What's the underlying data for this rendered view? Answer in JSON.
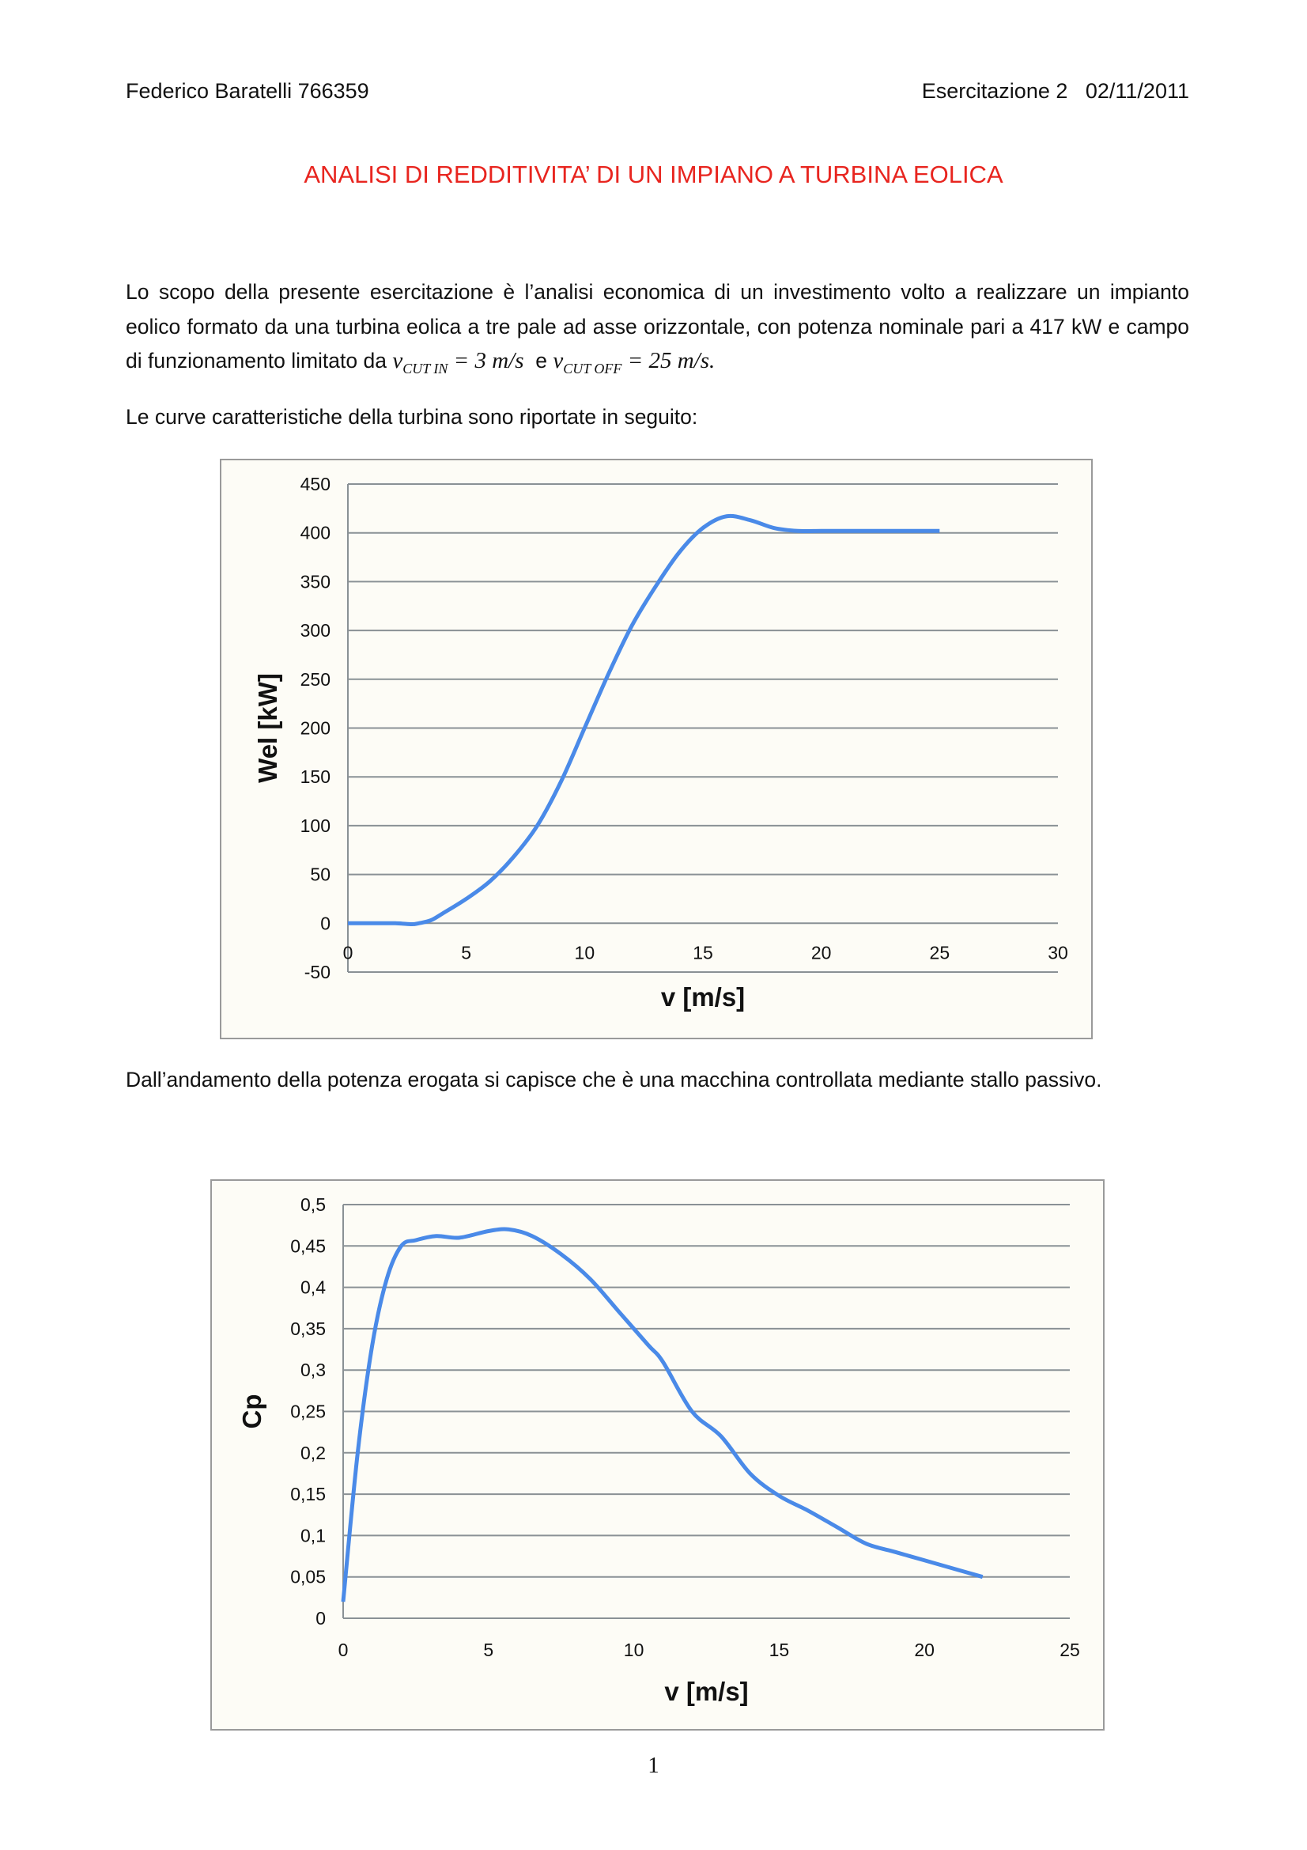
{
  "header": {
    "author": "Federico Baratelli 766359",
    "exercise": "Esercitazione 2   02/11/2011"
  },
  "title": "ANALISI DI REDDITIVITA’ DI UN IMPIANO A TURBINA EOLICA",
  "intro": {
    "text1": "Lo scopo della presente esercitazione è l’analisi economica di un investimento volto a realizzare un impianto eolico formato da una turbina eolica a tre pale ad asse orizzontale, con potenza nominale pari a 417 kW e campo di funzionamento limitato da ",
    "v_symbol": "v",
    "cut_in_sub": "CUT IN",
    "cut_in_value": " = 3 m/s",
    "connector": "  e ",
    "cut_off_sub": "CUT OFF",
    "cut_off_value": " = 25 m/s",
    "end": "."
  },
  "curves_intro": "Le curve caratteristiche della turbina sono riportate in seguito:",
  "stall_note": "Dall’andamento della potenza erogata si capisce che è una macchina controllata mediante stallo passivo.",
  "page_number": "1",
  "colors": {
    "line": "#4a8ae8",
    "grid": "#8a9195",
    "title": "#e8251f"
  },
  "chart_data": [
    {
      "type": "line",
      "title": "",
      "xlabel": "v [m/s]",
      "ylabel": "Wel [kW]",
      "xlim": [
        0,
        30
      ],
      "ylim": [
        -50,
        450
      ],
      "xticks": [
        "0",
        "5",
        "10",
        "15",
        "20",
        "25",
        "30"
      ],
      "yticks": [
        "-50",
        "0",
        "50",
        "100",
        "150",
        "200",
        "250",
        "300",
        "350",
        "400",
        "450"
      ],
      "grid": true,
      "x": [
        0,
        1,
        2,
        2.7,
        3,
        3.5,
        4,
        5,
        6,
        7,
        8,
        9,
        10,
        11,
        12,
        13,
        14,
        15,
        16,
        17,
        18,
        19,
        20,
        21,
        22,
        23,
        24,
        25
      ],
      "values": [
        0,
        0,
        0,
        -1,
        0,
        3,
        10,
        25,
        43,
        68,
        100,
        145,
        200,
        255,
        305,
        345,
        380,
        405,
        417,
        413,
        405,
        402,
        402,
        402,
        402,
        402,
        402,
        402
      ]
    },
    {
      "type": "line",
      "title": "",
      "xlabel": "v [m/s]",
      "ylabel": "Cp",
      "xlim": [
        0,
        25
      ],
      "ylim": [
        0,
        0.5
      ],
      "xticks": [
        "0",
        "5",
        "10",
        "15",
        "20",
        "25"
      ],
      "yticks": [
        "0",
        "0,05",
        "0,1",
        "0,15",
        "0,2",
        "0,25",
        "0,3",
        "0,35",
        "0,4",
        "0,45",
        "0,5"
      ],
      "grid": true,
      "x": [
        0,
        0.5,
        1,
        1.5,
        2,
        2.5,
        3.2,
        4,
        5,
        5.7,
        6.5,
        7.5,
        8.5,
        9.5,
        10.5,
        11,
        12,
        13,
        14,
        15,
        16,
        17,
        18,
        19,
        20,
        21,
        22
      ],
      "values": [
        0.02,
        0.2,
        0.33,
        0.41,
        0.45,
        0.457,
        0.462,
        0.46,
        0.468,
        0.47,
        0.462,
        0.44,
        0.41,
        0.37,
        0.33,
        0.31,
        0.25,
        0.22,
        0.175,
        0.148,
        0.13,
        0.11,
        0.09,
        0.08,
        0.07,
        0.06,
        0.05
      ]
    }
  ]
}
